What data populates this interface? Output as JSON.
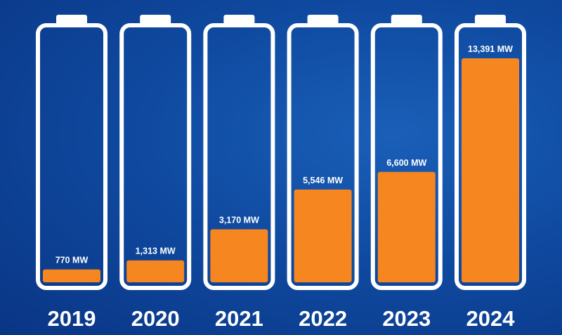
{
  "chart_data": {
    "type": "bar",
    "categories": [
      "2019",
      "2020",
      "2021",
      "2022",
      "2023",
      "2024"
    ],
    "values": [
      770,
      1313,
      3170,
      5546,
      6600,
      13391
    ],
    "value_labels": [
      "770 MW",
      "1,313 MW",
      "3,170 MW",
      "5,546 MW",
      "6,600 MW",
      "13,391 MW"
    ],
    "unit": "MW",
    "style": "battery-level bars",
    "colors": {
      "fill": "#f58620",
      "outline": "#ffffff",
      "background": "#0f4aa0",
      "text": "#ffffff"
    }
  }
}
